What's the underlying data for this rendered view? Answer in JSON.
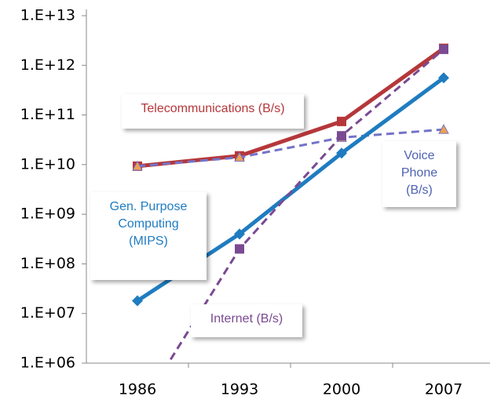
{
  "chart_data": {
    "type": "line",
    "log_scale": true,
    "categories": [
      "1986",
      "1993",
      "2000",
      "2007"
    ],
    "ylim": [
      1000000,
      10000000000000
    ],
    "yticks": [
      {
        "value": 1000000,
        "label": "1.E+06"
      },
      {
        "value": 10000000,
        "label": "1.E+07"
      },
      {
        "value": 100000000,
        "label": "1.E+08"
      },
      {
        "value": 1000000000,
        "label": "1.E+09"
      },
      {
        "value": 10000000000,
        "label": "1.E+10"
      },
      {
        "value": 100000000000,
        "label": "1.E+11"
      },
      {
        "value": 1000000000000,
        "label": "1.E+12"
      },
      {
        "value": 10000000000000,
        "label": "1.E+13"
      }
    ],
    "grid": false,
    "series": [
      {
        "name": "Telecommunications (B/s)",
        "color": "#b5373a",
        "marker": "square",
        "marker_color": "#b5373a",
        "dashed": false,
        "values": [
          9300000000,
          15000000000,
          74000000000,
          2200000000000
        ]
      },
      {
        "name": "Voice\nPhone\n(B/s)",
        "color": "#7474c8",
        "marker": "triangle",
        "marker_color": "#f0a050",
        "dashed": true,
        "values": [
          9300000000,
          14000000000,
          35000000000,
          51000000000
        ]
      },
      {
        "name": "Gen. Purpose\nComputing\n(MIPS)",
        "color": "#1f7cc0",
        "marker": "diamond",
        "marker_color": "#1f7cc0",
        "dashed": false,
        "values": [
          18000000,
          400000000,
          17000000000,
          560000000000
        ]
      },
      {
        "name": "Internet (B/s)",
        "color": "#7a4a92",
        "marker": "square",
        "marker_color": "#7a4a92",
        "dashed": true,
        "values": [
          100000,
          200000000,
          38000000000,
          2100000000000
        ]
      }
    ]
  }
}
